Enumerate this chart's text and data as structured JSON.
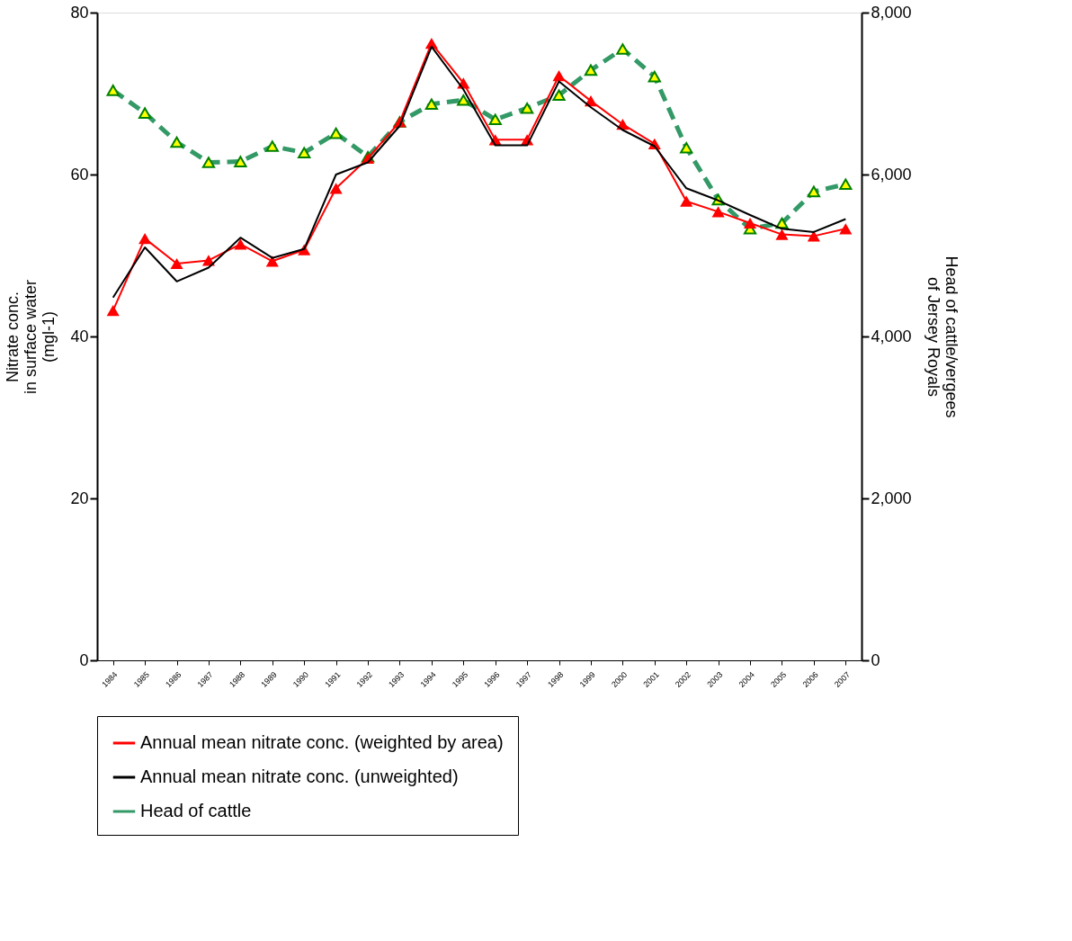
{
  "chart_data": {
    "type": "line",
    "ylabel": "Nitrate conc.\nin surface water\n(mgl-1)",
    "y2label": "Head of cattle/vergees\nof Jersey Royals",
    "categories": [
      "1984",
      "1985",
      "1986",
      "1987",
      "1988",
      "1989",
      "1990",
      "1991",
      "1992",
      "1993",
      "1994",
      "1995",
      "1996",
      "1997",
      "1998",
      "1999",
      "2000",
      "2001",
      "2002",
      "2003",
      "2004",
      "2005",
      "2006",
      "2007"
    ],
    "ylim": [
      0,
      80
    ],
    "yticks": [
      0,
      20,
      40,
      60,
      80
    ],
    "y2lim": [
      0,
      8000
    ],
    "y2ticks": [
      {
        "value": 0,
        "label": "0"
      },
      {
        "value": 2000,
        "label": "2,000"
      },
      {
        "value": 4000,
        "label": "4,000"
      },
      {
        "value": 6000,
        "label": "6,000"
      },
      {
        "value": 8000,
        "label": "8,000"
      }
    ],
    "grid": false,
    "legend": "bottom",
    "series": [
      {
        "name": "Annual mean nitrate conc. (weighted by area)",
        "color": "#ff0000",
        "marker": "triangle",
        "line_style": "solid",
        "values": [
          43.2,
          52.1,
          49.0,
          49.4,
          51.4,
          49.3,
          50.7,
          58.3,
          62.0,
          66.5,
          76.2,
          71.3,
          64.3,
          64.3,
          72.2,
          69.1,
          66.2,
          63.8,
          56.7,
          55.4,
          54.0,
          52.6,
          52.4,
          53.3
        ]
      },
      {
        "name": "Annual mean nitrate conc. (unweighted)",
        "color": "#000000",
        "marker": "none",
        "line_style": "solid",
        "values": [
          44.8,
          51.0,
          46.8,
          48.5,
          52.2,
          49.7,
          50.8,
          60.0,
          61.5,
          66.0,
          75.8,
          70.5,
          63.6,
          63.6,
          71.5,
          68.3,
          65.5,
          63.5,
          58.3,
          56.8,
          55.0,
          53.3,
          52.9,
          54.5
        ]
      },
      {
        "name": "Head of cattle",
        "color": "#339966",
        "marker": "triangle",
        "line_style": "dashed",
        "axis": "y2",
        "values": [
          7040,
          6760,
          6400,
          6150,
          6160,
          6350,
          6270,
          6510,
          6220,
          6650,
          6870,
          6920,
          6680,
          6820,
          6980,
          7290,
          7550,
          7210,
          6330,
          5690,
          5330,
          5400,
          5790,
          5880
        ]
      }
    ]
  }
}
